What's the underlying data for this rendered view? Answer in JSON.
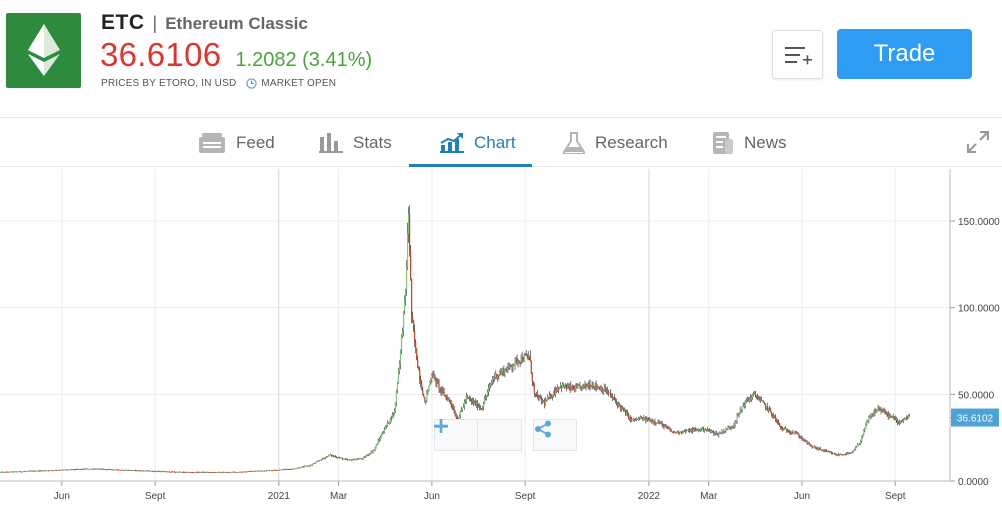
{
  "header": {
    "symbol": "ETC",
    "separator": "|",
    "name": "Ethereum Classic",
    "price": "36.6106",
    "change": "1.2082 (3.41%)",
    "prices_by": "PRICES BY ETORO, IN USD",
    "market_status": "MARKET OPEN",
    "trade_label": "Trade",
    "colors": {
      "price": "#e0342f",
      "change": "#4aa33c",
      "trade": "#2e9cf2",
      "logo_bg": "#2e8b3e"
    }
  },
  "tabs": [
    {
      "label": "Feed",
      "icon": "feed-icon",
      "active": false
    },
    {
      "label": "Stats",
      "icon": "stats-icon",
      "active": false
    },
    {
      "label": "Chart",
      "icon": "chart-icon",
      "active": true
    },
    {
      "label": "Research",
      "icon": "research-icon",
      "active": false
    },
    {
      "label": "News",
      "icon": "news-icon",
      "active": false
    }
  ],
  "chart_data": {
    "type": "candlestick",
    "x_tick_labels": [
      "Jun",
      "Sept",
      "2021",
      "Mar",
      "Jun",
      "Sept",
      "2022",
      "Mar",
      "Jun",
      "Sept"
    ],
    "x_tick_dates": [
      "2020-06-01",
      "2020-09-01",
      "2021-01-01",
      "2021-03-01",
      "2021-06-01",
      "2021-09-01",
      "2022-01-01",
      "2022-03-01",
      "2022-06-01",
      "2022-09-01"
    ],
    "y_tick_values": [
      0,
      50,
      100,
      150
    ],
    "y_tick_labels": [
      "0.0000",
      "50.0000",
      "100.0000",
      "150.0000"
    ],
    "ylim": [
      0,
      180
    ],
    "xlim": [
      "2020-04-01",
      "2022-10-25"
    ],
    "current_value": 36.6102,
    "current_label": "36.6102",
    "grid": true,
    "colors": {
      "up": "#7dc47d",
      "down": "#c8431e",
      "wick": "#222222",
      "badge": "#4da3d8"
    },
    "price_series": {
      "dates": [
        "2020-04-01",
        "2020-05-15",
        "2020-07-01",
        "2020-08-15",
        "2020-10-01",
        "2020-11-15",
        "2020-12-20",
        "2021-01-15",
        "2021-02-01",
        "2021-02-20",
        "2021-03-10",
        "2021-03-25",
        "2021-04-05",
        "2021-04-15",
        "2021-04-25",
        "2021-05-01",
        "2021-05-06",
        "2021-05-09",
        "2021-05-12",
        "2021-05-16",
        "2021-05-20",
        "2021-05-25",
        "2021-06-01",
        "2021-06-10",
        "2021-06-20",
        "2021-06-26",
        "2021-07-05",
        "2021-07-20",
        "2021-08-01",
        "2021-08-15",
        "2021-08-25",
        "2021-09-05",
        "2021-09-10",
        "2021-09-20",
        "2021-10-05",
        "2021-10-20",
        "2021-11-05",
        "2021-11-20",
        "2021-12-05",
        "2021-12-15",
        "2021-12-25",
        "2022-01-10",
        "2022-01-25",
        "2022-02-10",
        "2022-02-25",
        "2022-03-10",
        "2022-03-25",
        "2022-04-05",
        "2022-04-15",
        "2022-05-01",
        "2022-05-12",
        "2022-05-25",
        "2022-06-10",
        "2022-06-20",
        "2022-07-05",
        "2022-07-20",
        "2022-07-28",
        "2022-08-05",
        "2022-08-15",
        "2022-08-25",
        "2022-09-05",
        "2022-09-10",
        "2022-09-15"
      ],
      "values": [
        5,
        6,
        7,
        6,
        5,
        5,
        6,
        7,
        9,
        15,
        12,
        13,
        18,
        30,
        40,
        75,
        110,
        155,
        95,
        75,
        60,
        45,
        62,
        52,
        45,
        35,
        48,
        42,
        60,
        65,
        70,
        72,
        50,
        45,
        55,
        53,
        56,
        52,
        42,
        35,
        36,
        34,
        28,
        29,
        30,
        27,
        32,
        45,
        50,
        40,
        30,
        28,
        20,
        18,
        15,
        16,
        22,
        35,
        42,
        38,
        34,
        36,
        37
      ]
    }
  }
}
